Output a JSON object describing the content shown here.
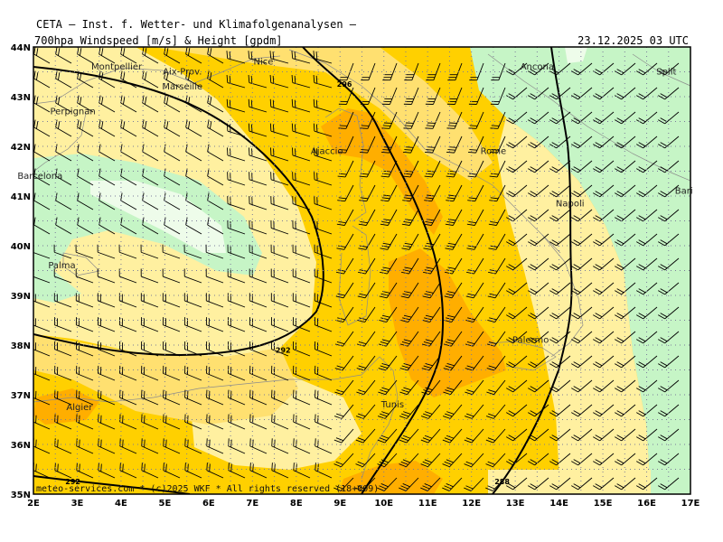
{
  "header": {
    "institute": "CETA – Inst. f. Wetter- und Klimafolgenanalysen –",
    "parameter": "700hpa_Windspeed_[m/s]_&_Height_[gpdm]",
    "valid_time": "23.12.2025 03 UTC"
  },
  "footer": {
    "credit": "meteo-services.com * (c)2025 WKF * All rights reserved (18+009)"
  },
  "axes": {
    "lon_labels": [
      "2E",
      "3E",
      "4E",
      "5E",
      "6E",
      "7E",
      "8E",
      "9E",
      "10E",
      "11E",
      "12E",
      "13E",
      "14E",
      "15E",
      "16E",
      "17E"
    ],
    "lat_labels": [
      "44N",
      "43N",
      "42N",
      "41N",
      "40N",
      "39N",
      "38N",
      "37N",
      "36N",
      "35N"
    ]
  },
  "cities": [
    {
      "name": "Montpellier",
      "lon": 3.9,
      "lat": 43.6
    },
    {
      "name": "Aix-Prov.",
      "lon": 5.4,
      "lat": 43.5
    },
    {
      "name": "Nice",
      "lon": 7.25,
      "lat": 43.7
    },
    {
      "name": "Marseille",
      "lon": 5.4,
      "lat": 43.2
    },
    {
      "name": "Perpignan",
      "lon": 2.9,
      "lat": 42.7
    },
    {
      "name": "Barcelona",
      "lon": 2.15,
      "lat": 41.4
    },
    {
      "name": "Ajaccio",
      "lon": 8.7,
      "lat": 41.9
    },
    {
      "name": "Palma",
      "lon": 2.65,
      "lat": 39.6
    },
    {
      "name": "Ancona",
      "lon": 13.5,
      "lat": 43.6
    },
    {
      "name": "Split",
      "lon": 16.45,
      "lat": 43.5
    },
    {
      "name": "Rome",
      "lon": 12.5,
      "lat": 41.9
    },
    {
      "name": "Napoli",
      "lon": 14.25,
      "lat": 40.85
    },
    {
      "name": "Bari",
      "lon": 16.85,
      "lat": 41.1
    },
    {
      "name": "Palermo",
      "lon": 13.35,
      "lat": 38.1
    },
    {
      "name": "Tunis",
      "lon": 10.2,
      "lat": 36.8
    },
    {
      "name": "Algier",
      "lon": 3.05,
      "lat": 36.75
    }
  ],
  "contours": [
    {
      "label": "296",
      "lon": 9.1,
      "lat": 43.2
    },
    {
      "label": "292",
      "lon": 7.7,
      "lat": 37.85
    },
    {
      "label": "292",
      "lon": 2.9,
      "lat": 35.2
    },
    {
      "label": "288",
      "lon": 12.7,
      "lat": 35.2
    }
  ],
  "colors": {
    "light_green": "#c6f5c6",
    "pale_green": "#eefcea",
    "light_yellow": "#fff0a0",
    "yellow": "#ffe070",
    "gold": "#ffd000",
    "orange": "#ffae00"
  }
}
